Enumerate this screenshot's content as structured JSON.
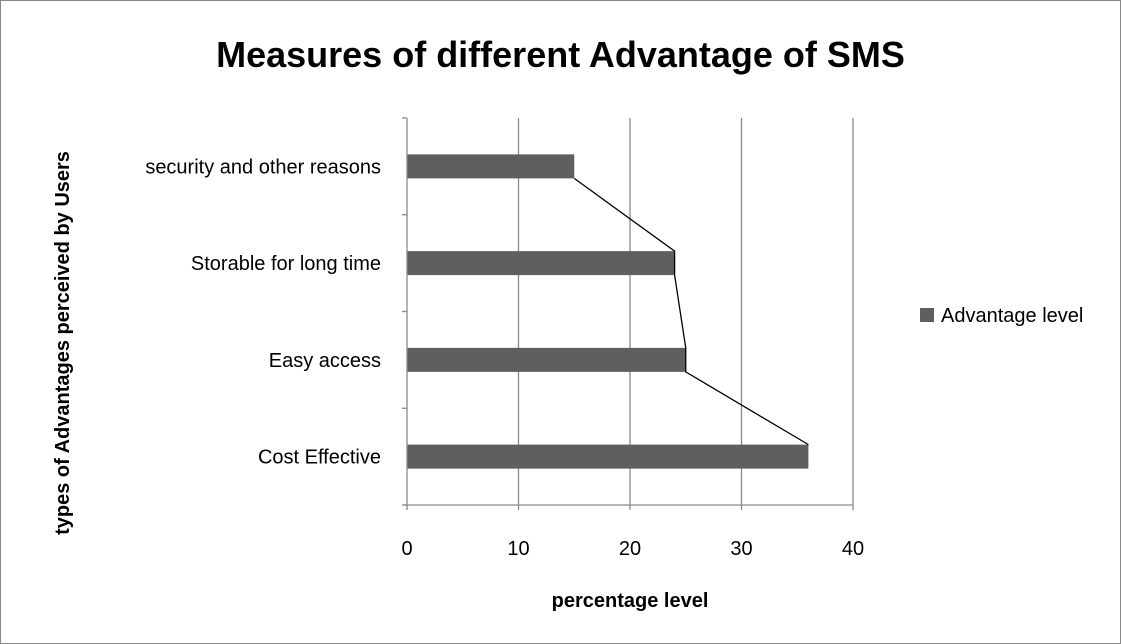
{
  "chart_data": {
    "type": "bar",
    "orientation": "horizontal",
    "title": "Measures of different Advantage of SMS",
    "xlabel": "percentage level",
    "ylabel": "types of Advantages perceived by Users",
    "categories": [
      "security and other reasons",
      "Storable for long time",
      "Easy access",
      "Cost Effective"
    ],
    "series": [
      {
        "name": "Advantage level",
        "values": [
          15,
          24,
          25,
          36
        ],
        "color": "#5f5f5f"
      }
    ],
    "connector_line": true,
    "xlim": [
      0,
      40
    ],
    "xticks": [
      0,
      10,
      20,
      30,
      40
    ],
    "grid": "vertical",
    "legend": "right"
  }
}
